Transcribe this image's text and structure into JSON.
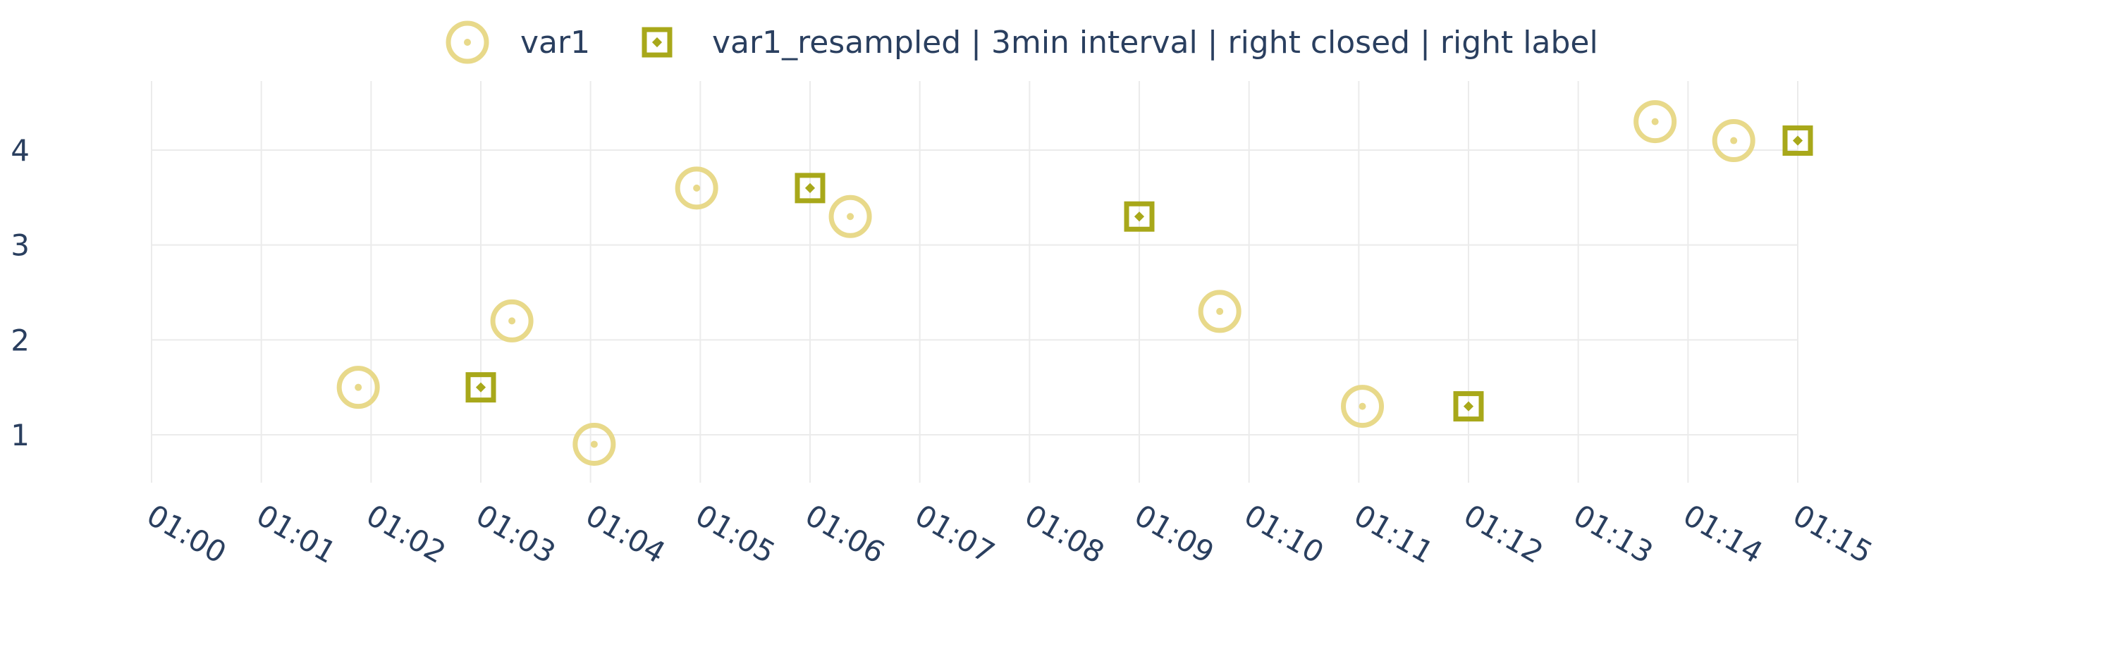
{
  "chart_data": {
    "type": "scatter",
    "grid": true,
    "legend_position": "top-center",
    "x_tick_labels": [
      "01:00",
      "01:01",
      "01:02",
      "01:03",
      "01:04",
      "01:05",
      "01:06",
      "01:07",
      "01:08",
      "01:09",
      "01:10",
      "01:11",
      "01:12",
      "01:13",
      "01:14",
      "01:15"
    ],
    "y_tick_labels": [
      "1",
      "2",
      "3",
      "4"
    ],
    "ylim": [
      0.4,
      4.8
    ],
    "xlim": [
      "01:00",
      "01:15"
    ],
    "series": [
      {
        "name": "var1",
        "marker": "circle-open-dot",
        "color": "#e8d98a",
        "x": [
          "01:01:53",
          "01:03:17",
          "01:04:02",
          "01:04:58",
          "01:06:22",
          "01:09:44",
          "01:11:02",
          "01:13:42",
          "01:14:25"
        ],
        "y": [
          1.5,
          2.2,
          0.9,
          3.6,
          3.3,
          2.3,
          1.3,
          4.3,
          4.1
        ]
      },
      {
        "name": "var1_resampled | 3min interval | right closed | right label",
        "marker": "square-open-dot",
        "color": "#a8a81a",
        "x": [
          "01:03:00",
          "01:06:00",
          "01:09:00",
          "01:12:00",
          "01:15:00"
        ],
        "y": [
          1.5,
          3.6,
          3.3,
          1.3,
          4.1
        ]
      }
    ]
  }
}
